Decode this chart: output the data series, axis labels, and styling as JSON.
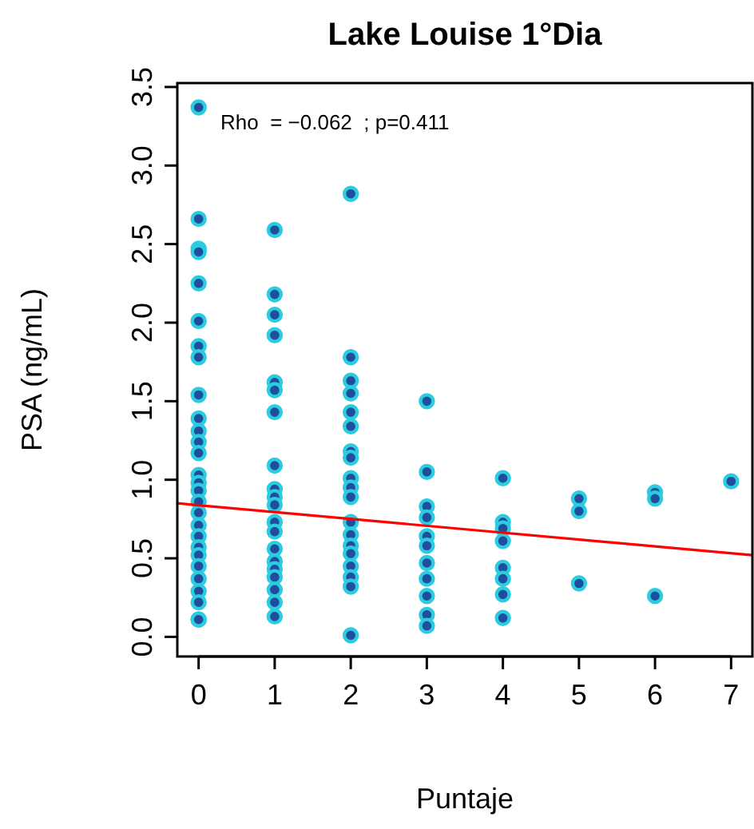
{
  "chart_data": {
    "type": "scatter",
    "title": "Lake Louise 1°Dia",
    "xlabel": "Puntaje",
    "ylabel": "PSA (ng/mL)",
    "annotations": [
      "Rho  = −0.062  ; p=0.411"
    ],
    "xlim": [
      -0.28,
      7.28
    ],
    "ylim": [
      -0.125,
      3.525
    ],
    "xticks": [
      0,
      1,
      2,
      3,
      4,
      5,
      6,
      7
    ],
    "yticks": [
      {
        "value": 0,
        "label": "0.0"
      },
      {
        "value": 0.5,
        "label": "0.5"
      },
      {
        "value": 1,
        "label": "1.0"
      },
      {
        "value": 1.5,
        "label": "1.5"
      },
      {
        "value": 2,
        "label": "2.0"
      },
      {
        "value": 2.5,
        "label": "2.5"
      },
      {
        "value": 3,
        "label": "3.0"
      },
      {
        "value": 3.5,
        "label": "3.5"
      }
    ],
    "grid": false,
    "series": [
      {
        "marker": "circle",
        "color": "#1f4e9c",
        "x": [
          0,
          0,
          0,
          0,
          0,
          0,
          0,
          0,
          0,
          0,
          0,
          0,
          0,
          0,
          0,
          0,
          0,
          0,
          0,
          0,
          0,
          0,
          0,
          0,
          0,
          0,
          0,
          0,
          1,
          1,
          1,
          1,
          1,
          1,
          1,
          1,
          1,
          1,
          1,
          1,
          1,
          1,
          1,
          1,
          1,
          1,
          1,
          1,
          2,
          2,
          2,
          2,
          2,
          2,
          2,
          2,
          2,
          2,
          2,
          2,
          2,
          2,
          2,
          2,
          2,
          2,
          2,
          3,
          3,
          3,
          3,
          3,
          3,
          3,
          3,
          3,
          3,
          3,
          4,
          4,
          4,
          4,
          4,
          4,
          4,
          4,
          5,
          5,
          5,
          6,
          6,
          6,
          7
        ],
        "values": [
          3.37,
          2.66,
          2.47,
          2.45,
          2.25,
          2.01,
          1.85,
          1.78,
          1.54,
          1.39,
          1.31,
          1.24,
          1.17,
          1.03,
          0.98,
          0.93,
          0.86,
          0.79,
          0.71,
          0.64,
          0.57,
          0.52,
          0.45,
          0.37,
          0.29,
          0.22,
          0.11,
          0.11,
          2.59,
          2.18,
          2.05,
          1.92,
          1.62,
          1.57,
          1.43,
          1.09,
          0.94,
          0.89,
          0.84,
          0.73,
          0.67,
          0.56,
          0.48,
          0.43,
          0.38,
          0.3,
          0.22,
          0.13,
          2.82,
          1.78,
          1.63,
          1.55,
          1.43,
          1.34,
          1.18,
          1.14,
          1.01,
          0.95,
          0.89,
          0.73,
          0.65,
          0.58,
          0.53,
          0.45,
          0.38,
          0.32,
          0.01,
          1.5,
          1.05,
          0.83,
          0.76,
          0.64,
          0.58,
          0.47,
          0.37,
          0.26,
          0.14,
          0.07,
          1.01,
          0.73,
          0.69,
          0.61,
          0.44,
          0.37,
          0.27,
          0.12,
          0.88,
          0.8,
          0.34,
          0.92,
          0.88,
          0.26,
          0.99
        ]
      },
      {
        "type": "line",
        "color": "#ff0000",
        "x": [
          -0.28,
          7.28
        ],
        "values": [
          0.85,
          0.52
        ]
      }
    ]
  }
}
